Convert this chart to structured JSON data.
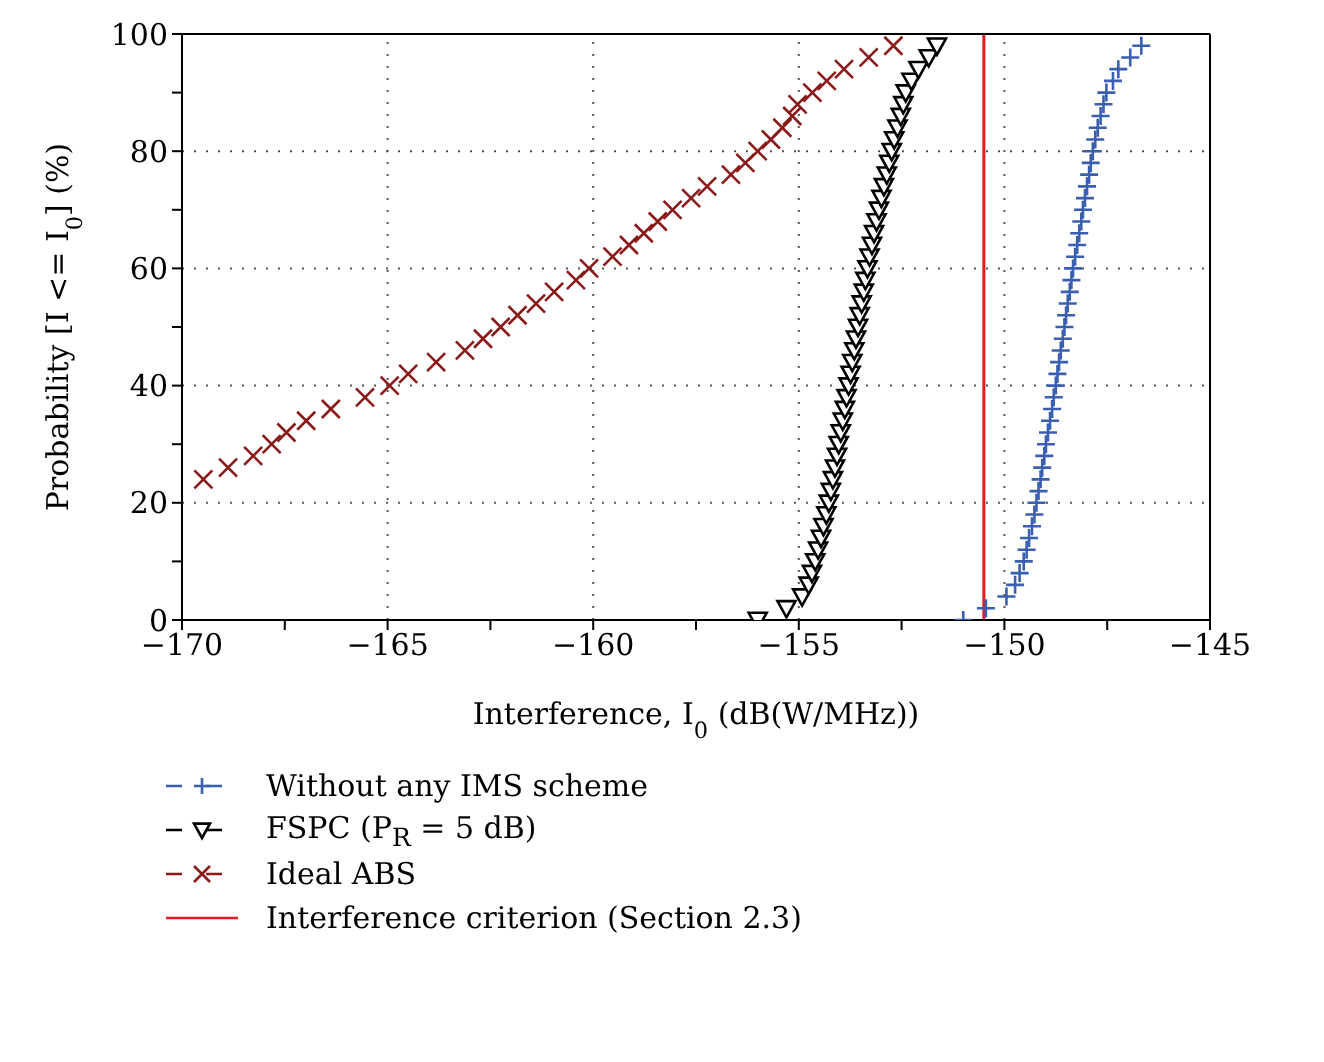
{
  "chart_data": {
    "type": "scatter",
    "xlabel": "Interference, I$_{0}$ (dB(W/MHz))",
    "ylabel": "Probability [I <= I$_{0}$] (%)",
    "xlim": [
      -170,
      -145
    ],
    "xticks": [
      -170,
      {
        "value": -167.5,
        "label": null
      },
      -165,
      {
        "value": -162.5,
        "label": null
      },
      -160,
      {
        "value": -157.5,
        "label": null
      },
      -155,
      {
        "value": -152.5,
        "label": null
      },
      -150,
      {
        "value": -147.5,
        "label": null
      },
      -145
    ],
    "ylim": [
      0,
      100
    ],
    "yticks": [
      0,
      {
        "value": 10,
        "label": null
      },
      20,
      {
        "value": 30,
        "label": null
      },
      40,
      {
        "value": 50,
        "label": null
      },
      60,
      {
        "value": 70,
        "label": null
      },
      80,
      {
        "value": 90,
        "label": null
      },
      100
    ],
    "grid": true,
    "legend": "bottom",
    "line_style": "dashed",
    "series": [
      {
        "name": "Without any IMS scheme",
        "color": "#3a5fb0",
        "marker": "plus",
        "x": [
          -151.0,
          -150.45,
          -149.95,
          -149.74,
          -149.63,
          -149.53,
          -149.46,
          -149.4,
          -149.33,
          -149.27,
          -149.22,
          -149.17,
          -149.12,
          -149.08,
          -149.03,
          -148.99,
          -148.94,
          -148.89,
          -148.84,
          -148.8,
          -148.75,
          -148.71,
          -148.67,
          -148.63,
          -148.58,
          -148.54,
          -148.5,
          -148.46,
          -148.41,
          -148.37,
          -148.33,
          -148.28,
          -148.23,
          -148.18,
          -148.13,
          -148.09,
          -148.04,
          -147.99,
          -147.94,
          -147.9,
          -147.85,
          -147.79,
          -147.73,
          -147.66,
          -147.59,
          -147.52,
          -147.36,
          -147.23,
          -146.94,
          -146.67
        ],
        "values": [
          0,
          2,
          4,
          6,
          8,
          10,
          12,
          14,
          16,
          18,
          20,
          22,
          24,
          26,
          28,
          30,
          32,
          34,
          36,
          38,
          40,
          42,
          44,
          46,
          48,
          50,
          52,
          54,
          56,
          58,
          60,
          62,
          64,
          66,
          68,
          70,
          72,
          74,
          76,
          78,
          80,
          82,
          84,
          86,
          88,
          90,
          92,
          94,
          96,
          98
        ]
      },
      {
        "name": "FSPC (P$_{R}$ = 5 dB)",
        "color": "#000000",
        "marker": "triangle",
        "x": [
          -156.0,
          -155.3,
          -154.92,
          -154.76,
          -154.68,
          -154.6,
          -154.53,
          -154.46,
          -154.4,
          -154.33,
          -154.27,
          -154.22,
          -154.17,
          -154.12,
          -154.07,
          -154.03,
          -153.98,
          -153.93,
          -153.88,
          -153.84,
          -153.79,
          -153.74,
          -153.7,
          -153.65,
          -153.61,
          -153.56,
          -153.52,
          -153.47,
          -153.42,
          -153.38,
          -153.33,
          -153.28,
          -153.22,
          -153.17,
          -153.11,
          -153.05,
          -152.99,
          -152.93,
          -152.86,
          -152.8,
          -152.74,
          -152.68,
          -152.6,
          -152.52,
          -152.46,
          -152.4,
          -152.26,
          -152.09,
          -151.84,
          -151.64
        ],
        "values": [
          0,
          2,
          4,
          6,
          8,
          10,
          12,
          14,
          16,
          18,
          20,
          22,
          24,
          26,
          28,
          30,
          32,
          34,
          36,
          38,
          40,
          42,
          44,
          46,
          48,
          50,
          52,
          54,
          56,
          58,
          60,
          62,
          64,
          66,
          68,
          70,
          72,
          74,
          76,
          78,
          80,
          82,
          84,
          86,
          88,
          90,
          92,
          94,
          96,
          98
        ]
      },
      {
        "name": "Ideal ABS",
        "color": "#8b1a1a",
        "marker": "cross",
        "x": [
          -169.48,
          -168.88,
          -168.27,
          -167.82,
          -167.46,
          -166.98,
          -166.38,
          -165.55,
          -164.95,
          -164.5,
          -163.82,
          -163.12,
          -162.68,
          -162.25,
          -161.84,
          -161.39,
          -160.95,
          -160.42,
          -160.1,
          -159.53,
          -159.13,
          -158.77,
          -158.43,
          -158.07,
          -157.62,
          -157.23,
          -156.65,
          -156.3,
          -156.0,
          -155.68,
          -155.4,
          -155.16,
          -155.03,
          -154.67,
          -154.32,
          -153.9,
          -153.3,
          -152.7
        ],
        "values": [
          24,
          26,
          28,
          30,
          32,
          34,
          36,
          38,
          40,
          42,
          44,
          46,
          48,
          50,
          52,
          54,
          56,
          58,
          60,
          62,
          64,
          66,
          68,
          70,
          72,
          74,
          76,
          78,
          80,
          82,
          84,
          86,
          88,
          90,
          92,
          94,
          96,
          98
        ]
      }
    ],
    "ref_lines": [
      {
        "axis": "x",
        "value": -150.5,
        "label": "Interference criterion (Section 2.3)",
        "color": "#e8191c",
        "line_style": "solid"
      }
    ]
  }
}
